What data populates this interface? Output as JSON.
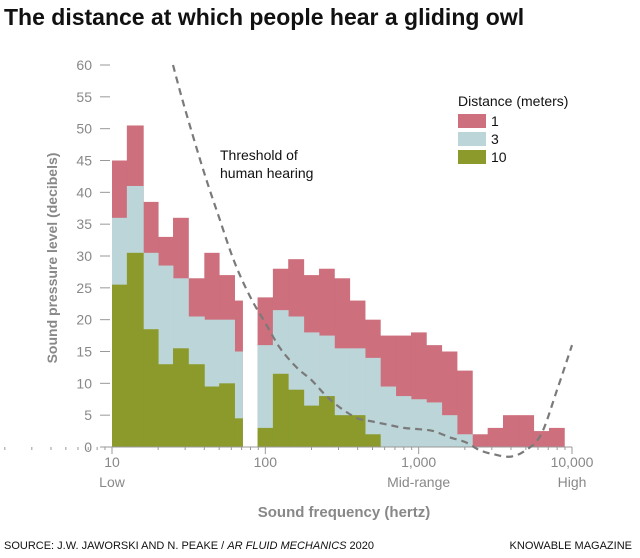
{
  "title": "The distance at which people hear a gliding owl",
  "source": {
    "prefix": "SOURCE: J.W. JAWORSKI AND N. PEAKE / ",
    "journal": "AR FLUID MECHANICS",
    "year": " 2020"
  },
  "publisher": "KNOWABLE MAGAZINE",
  "colors": {
    "d1": "#cd6f7c",
    "d3": "#bcd5d8",
    "d10": "#8b9a2a",
    "threshold": "#7a7a7a",
    "axis": "#999999",
    "text": "#888888"
  },
  "chart_data": {
    "type": "histogram",
    "xlabel": "Sound frequency (hertz)",
    "ylabel": "Sound pressure level (decibels)",
    "xscale": "log",
    "xlim": [
      10,
      10000
    ],
    "ylim": [
      0,
      60
    ],
    "yticks": [
      0,
      5,
      10,
      15,
      20,
      25,
      30,
      35,
      40,
      45,
      50,
      55,
      60
    ],
    "xticks": [
      {
        "value": 10,
        "label": "10",
        "sublabel": "Low"
      },
      {
        "value": 100,
        "label": "100",
        "sublabel": ""
      },
      {
        "value": 1000,
        "label": "1,000",
        "sublabel": "Mid-range"
      },
      {
        "value": 10000,
        "label": "10,000",
        "sublabel": "High"
      }
    ],
    "legend": {
      "title": "Distance (meters)",
      "position": "top-right",
      "entries": [
        "1",
        "3",
        "10"
      ]
    },
    "bins": {
      "edges_hz": [
        10,
        12.5,
        16,
        20,
        25,
        31.5,
        40,
        50,
        63,
        71,
        89,
        112,
        141,
        178,
        224,
        282,
        355,
        447,
        562,
        708,
        891,
        1122,
        1413,
        1778,
        2239,
        2818,
        3548,
        4467,
        5623,
        7079,
        8913
      ],
      "d1": [
        45,
        50.5,
        38.5,
        33,
        36,
        26.5,
        30.5,
        27,
        23,
        null,
        23.5,
        28,
        29.5,
        27,
        28,
        26.5,
        23,
        20,
        17.5,
        17.5,
        18,
        16,
        15,
        12,
        2,
        3,
        5,
        5,
        2.5,
        3
      ],
      "d3": [
        36,
        41,
        30.5,
        28.5,
        26.5,
        20.5,
        20,
        20,
        15,
        null,
        16,
        21.5,
        20.5,
        18,
        17.5,
        15.5,
        15.5,
        14,
        9.5,
        8,
        7.5,
        7,
        5,
        2,
        0,
        0,
        0,
        0,
        0,
        0
      ],
      "d10": [
        25.5,
        30.5,
        18.5,
        13,
        15.5,
        13,
        9.5,
        10,
        4.5,
        null,
        3,
        11.5,
        9,
        6.5,
        8,
        5,
        5,
        2,
        0,
        0,
        0,
        0,
        0,
        0,
        0,
        0,
        0,
        0,
        0,
        0
      ]
    },
    "threshold": {
      "label": "Threshold of human hearing",
      "freq_hz": [
        25,
        30,
        40,
        50,
        63,
        80,
        100,
        125,
        160,
        200,
        250,
        315,
        400,
        500,
        630,
        800,
        1000,
        1250,
        1600,
        2000,
        2500,
        3150,
        4000,
        5000,
        6300,
        8000,
        10000
      ],
      "db": [
        60,
        53,
        43,
        36,
        29,
        23.5,
        19.5,
        15.5,
        12.5,
        10.5,
        8,
        6,
        4.5,
        4,
        3.5,
        3,
        2.8,
        2.5,
        1.5,
        0.8,
        -0.5,
        -1.2,
        -1.5,
        -0.5,
        2,
        9,
        16
      ]
    }
  }
}
